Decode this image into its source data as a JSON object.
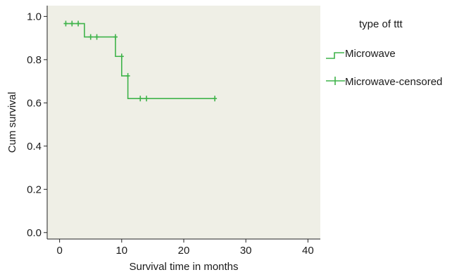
{
  "chart_data": {
    "type": "line",
    "subtype": "kaplan-meier step",
    "title": "",
    "xlabel": "Survival time in months",
    "ylabel": "Cum survival",
    "xlim": [
      -2,
      42
    ],
    "ylim": [
      -0.03,
      1.05
    ],
    "x_ticks": [
      0,
      10,
      20,
      30,
      40
    ],
    "y_ticks": [
      0.0,
      0.2,
      0.4,
      0.6,
      0.8,
      1.0
    ],
    "x_tick_labels": [
      "0",
      "10",
      "20",
      "30",
      "40"
    ],
    "y_tick_labels": [
      "0.0",
      "0.2",
      "0.4",
      "0.6",
      "0.8",
      "1.0"
    ],
    "grid": false,
    "plot_background": "#efefe6",
    "line_color": "#3fb34a",
    "legend": {
      "title": "type of ttt",
      "placement": "right",
      "entries": [
        "Microwave",
        "Microwave-censored"
      ]
    },
    "series": [
      {
        "name": "Microwave",
        "steps": [
          {
            "x": 1,
            "y": 0.967
          },
          {
            "x": 4,
            "y": 0.905
          },
          {
            "x": 9,
            "y": 0.815
          },
          {
            "x": 10,
            "y": 0.725
          },
          {
            "x": 11,
            "y": 0.62
          },
          {
            "x": 25,
            "y": 0.62
          }
        ]
      },
      {
        "name": "Microwave-censored",
        "points": [
          {
            "x": 1,
            "y": 0.967
          },
          {
            "x": 2,
            "y": 0.967
          },
          {
            "x": 3,
            "y": 0.967
          },
          {
            "x": 5,
            "y": 0.905
          },
          {
            "x": 6,
            "y": 0.905
          },
          {
            "x": 9,
            "y": 0.905
          },
          {
            "x": 10,
            "y": 0.815
          },
          {
            "x": 11,
            "y": 0.725
          },
          {
            "x": 13,
            "y": 0.62
          },
          {
            "x": 14,
            "y": 0.62
          },
          {
            "x": 25,
            "y": 0.62
          }
        ]
      }
    ]
  }
}
